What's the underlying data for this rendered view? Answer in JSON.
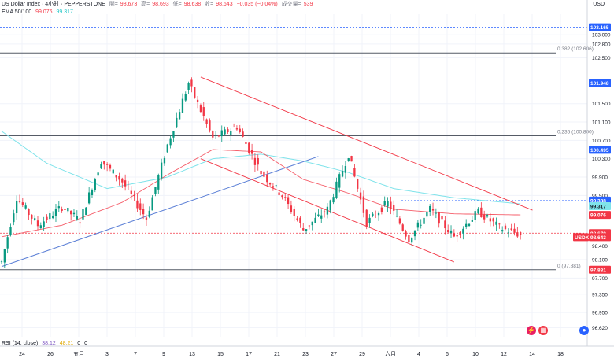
{
  "header": {
    "symbol_line": "US Dollar Index · 4小时 · PEPPERSTONE",
    "open_label": "開=",
    "open": "98.673",
    "high_label": "高=",
    "high": "98.693",
    "low_label": "低=",
    "low": "98.638",
    "close_label": "收=",
    "close": "98.643",
    "change": "−0.035 (−0.04%)",
    "volume_label": "成交量=",
    "volume": "539",
    "ema_label": "EMA 50/100",
    "ema50": "99.076",
    "ema100": "99.317"
  },
  "rsi": {
    "label": "RSI (14, close)",
    "value": "38.12",
    "signal": "48.21",
    "extra1": "0",
    "extra2": "0"
  },
  "axis": {
    "currency": "USD"
  },
  "colors": {
    "up": "#089981",
    "down": "#f23645",
    "ema50": "#f23645",
    "ema100": "#7fe3ea",
    "trendline": "#5b7fd6",
    "channel": "#f23645",
    "grid": "#f0f3fa"
  },
  "chart_data": {
    "type": "candlestick",
    "title": "US Dollar Index · 4小时 · PEPPERSTONE",
    "ylim": [
      96.42,
      103.45
    ],
    "y_ticks": [
      "103.000",
      "102.800",
      "102.500",
      "101.500",
      "101.100",
      "100.700",
      "100.300",
      "99.900",
      "99.500",
      "98.400",
      "98.100",
      "97.700",
      "97.350",
      "96.950",
      "96.620"
    ],
    "x_ticks": [
      "24",
      "26",
      "五月",
      "3",
      "7",
      "9",
      "13",
      "15",
      "17",
      "21",
      "23",
      "27",
      "29",
      "六月",
      "4",
      "6",
      "10",
      "12",
      "14",
      "18"
    ],
    "price_labels": [
      {
        "text": "103.165",
        "value": 103.165,
        "style": "blue"
      },
      {
        "text": "101.948",
        "value": 101.948,
        "style": "blue"
      },
      {
        "text": "100.495",
        "value": 100.495,
        "style": "blue"
      },
      {
        "text": "99.388",
        "value": 99.388,
        "style": "blue"
      },
      {
        "text": "99.317",
        "value": 99.317,
        "style": "cyan"
      },
      {
        "text": "99.076",
        "value": 99.076,
        "style": "red"
      },
      {
        "text": "98.679",
        "value": 98.679,
        "style": "red"
      },
      {
        "text": "98.643",
        "value": 98.643,
        "style": "red",
        "prefix": "USDX"
      },
      {
        "text": "97.881",
        "value": 97.881,
        "style": "red"
      }
    ],
    "fib_levels": [
      {
        "label": "0.382 (102.606)",
        "value": 102.606
      },
      {
        "label": "0.236 (100.800)",
        "value": 100.8
      },
      {
        "label": "0 (97.881)",
        "value": 97.881
      }
    ],
    "dashed_levels": [
      103.165,
      101.948,
      100.495,
      99.388,
      98.679
    ],
    "pivots": [
      {
        "bar": 0,
        "price": 98.05
      },
      {
        "bar": 5,
        "price": 99.45
      },
      {
        "bar": 12,
        "price": 98.85
      },
      {
        "bar": 20,
        "price": 99.25
      },
      {
        "bar": 26,
        "price": 98.95
      },
      {
        "bar": 33,
        "price": 100.25
      },
      {
        "bar": 40,
        "price": 99.8
      },
      {
        "bar": 48,
        "price": 99.0
      },
      {
        "bar": 55,
        "price": 100.6
      },
      {
        "bar": 62,
        "price": 101.95
      },
      {
        "bar": 70,
        "price": 100.75
      },
      {
        "bar": 78,
        "price": 101.0
      },
      {
        "bar": 86,
        "price": 100.0
      },
      {
        "bar": 93,
        "price": 99.5
      },
      {
        "bar": 100,
        "price": 98.75
      },
      {
        "bar": 108,
        "price": 99.2
      },
      {
        "bar": 115,
        "price": 100.4
      },
      {
        "bar": 121,
        "price": 98.9
      },
      {
        "bar": 128,
        "price": 99.35
      },
      {
        "bar": 135,
        "price": 98.55
      },
      {
        "bar": 142,
        "price": 99.2
      },
      {
        "bar": 150,
        "price": 98.6
      },
      {
        "bar": 158,
        "price": 99.15
      },
      {
        "bar": 165,
        "price": 98.8
      },
      {
        "bar": 172,
        "price": 98.64
      }
    ],
    "ema50_points": [
      {
        "bar": 0,
        "price": 98.6
      },
      {
        "bar": 20,
        "price": 98.85
      },
      {
        "bar": 40,
        "price": 99.35
      },
      {
        "bar": 55,
        "price": 99.95
      },
      {
        "bar": 70,
        "price": 100.5
      },
      {
        "bar": 86,
        "price": 100.45
      },
      {
        "bar": 100,
        "price": 99.85
      },
      {
        "bar": 115,
        "price": 99.55
      },
      {
        "bar": 130,
        "price": 99.2
      },
      {
        "bar": 150,
        "price": 99.1
      },
      {
        "bar": 172,
        "price": 99.076
      }
    ],
    "ema100_points": [
      {
        "bar": 0,
        "price": 100.9
      },
      {
        "bar": 15,
        "price": 100.2
      },
      {
        "bar": 35,
        "price": 99.65
      },
      {
        "bar": 55,
        "price": 99.9
      },
      {
        "bar": 70,
        "price": 100.3
      },
      {
        "bar": 86,
        "price": 100.4
      },
      {
        "bar": 100,
        "price": 100.25
      },
      {
        "bar": 115,
        "price": 100.0
      },
      {
        "bar": 130,
        "price": 99.65
      },
      {
        "bar": 150,
        "price": 99.45
      },
      {
        "bar": 172,
        "price": 99.317
      }
    ]
  }
}
